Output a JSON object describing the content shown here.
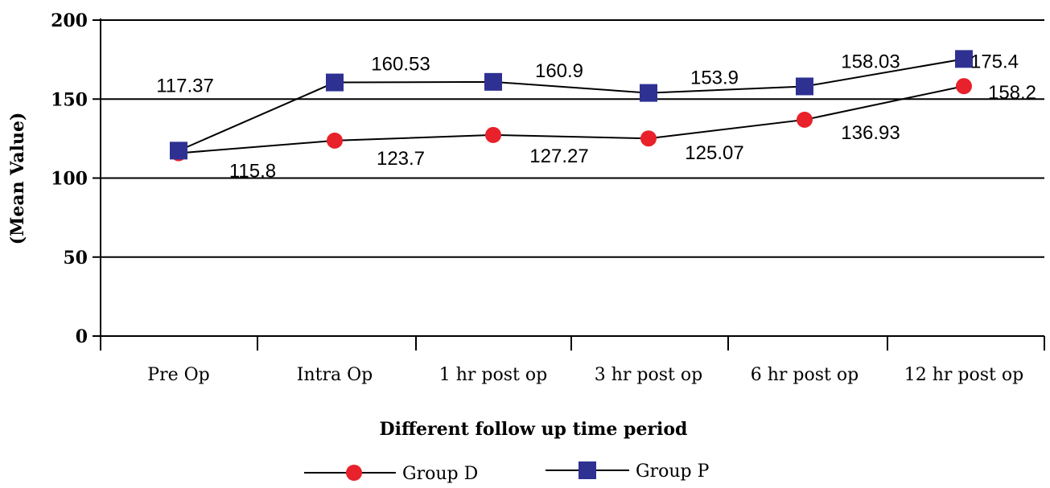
{
  "chart_data": {
    "type": "line",
    "categories": [
      "Pre Op",
      "Intra Op",
      "1 hr post op",
      "3 hr post op",
      "6 hr post op",
      "12 hr post op"
    ],
    "series": [
      {
        "name": "Group D",
        "values": [
          115.8,
          123.7,
          127.27,
          125.07,
          136.93,
          158.2
        ],
        "color": "#e8212a",
        "marker": "circle"
      },
      {
        "name": "Group P",
        "values": [
          117.37,
          160.53,
          160.9,
          153.9,
          158.03,
          175.4
        ],
        "color": "#2e3192",
        "marker": "square"
      }
    ],
    "data_labels": {
      "Group D": [
        "115.8",
        "123.7",
        "127.27",
        "125.07",
        "136.93",
        "158.2"
      ],
      "Group P": [
        "117.37",
        "160.53",
        "160.9",
        "153.9",
        "158.03",
        "175.4"
      ]
    },
    "yticks": [
      "0",
      "50",
      "100",
      "150",
      "200"
    ],
    "ylim": [
      0,
      200
    ],
    "xlabel": "Different follow up time period",
    "ylabel": "(Mean Value)",
    "grid": true,
    "legend": "bottom"
  }
}
